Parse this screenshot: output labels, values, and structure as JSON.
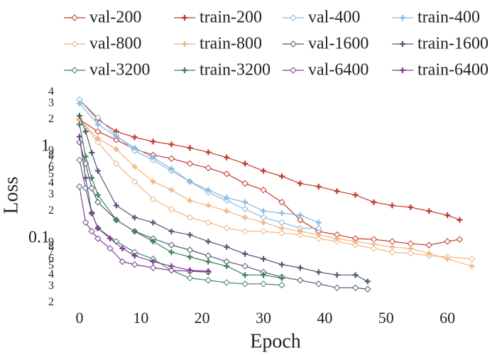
{
  "chart_data": {
    "type": "line",
    "x_label": "Epoch",
    "y_label": "Loss",
    "y_scale": "log",
    "grid": false,
    "xlim": [
      -1.5,
      64.5
    ],
    "xticks": [
      0,
      10,
      20,
      30,
      40,
      50,
      60
    ],
    "ylim": [
      0.018,
      4.5
    ],
    "yticks": [
      {
        "value": 0.02,
        "label": "2"
      },
      {
        "value": 0.03,
        "label": "3"
      },
      {
        "value": 0.04,
        "label": "4"
      },
      {
        "value": 0.05,
        "label": "5"
      },
      {
        "value": 0.06,
        "label": "6"
      },
      {
        "value": 0.07,
        "label": "7"
      },
      {
        "value": 0.08,
        "label": "8"
      },
      {
        "value": 0.09,
        "label": "9"
      },
      0.1,
      {
        "value": 0.2,
        "label": "2"
      },
      {
        "value": 0.3,
        "label": "3"
      },
      {
        "value": 0.4,
        "label": "4"
      },
      {
        "value": 0.5,
        "label": "5"
      },
      {
        "value": 0.6,
        "label": "6"
      },
      {
        "value": 0.7,
        "label": "7"
      },
      {
        "value": 0.8,
        "label": "8"
      },
      {
        "value": 0.9,
        "label": "9"
      },
      1,
      2,
      3,
      4
    ],
    "series": [
      {
        "name": "val-200",
        "color": "#c0392b",
        "marker": "diamond-open",
        "x": [
          0,
          3,
          6,
          9,
          12,
          15,
          18,
          21,
          24,
          27,
          30,
          33,
          36,
          39,
          42,
          45,
          48,
          51,
          54,
          57,
          60,
          62
        ],
        "values": [
          2.0,
          1.48,
          1.2,
          0.95,
          0.82,
          0.75,
          0.66,
          0.59,
          0.51,
          0.4,
          0.34,
          0.25,
          0.16,
          0.12,
          0.11,
          0.1,
          0.098,
          0.093,
          0.088,
          0.085,
          0.093,
          0.098
        ]
      },
      {
        "name": "train-200",
        "color": "#c0392b",
        "marker": "cross",
        "x": [
          0,
          3,
          6,
          9,
          12,
          15,
          18,
          21,
          24,
          27,
          30,
          33,
          36,
          39,
          42,
          45,
          48,
          51,
          54,
          57,
          60,
          62
        ],
        "values": [
          3.3,
          2.0,
          1.48,
          1.28,
          1.15,
          1.07,
          0.98,
          0.88,
          0.77,
          0.66,
          0.55,
          0.48,
          0.4,
          0.37,
          0.33,
          0.3,
          0.25,
          0.23,
          0.22,
          0.2,
          0.18,
          0.16
        ]
      },
      {
        "name": "val-400",
        "color": "#8ab9df",
        "marker": "diamond-open",
        "x": [
          0,
          3,
          6,
          9,
          12,
          15,
          18,
          21,
          24,
          27,
          30,
          33,
          36,
          39
        ],
        "values": [
          3.3,
          2.1,
          1.35,
          0.91,
          0.72,
          0.55,
          0.42,
          0.32,
          0.26,
          0.21,
          0.17,
          0.15,
          0.13,
          0.13
        ]
      },
      {
        "name": "train-400",
        "color": "#8ab9df",
        "marker": "cross",
        "x": [
          0,
          3,
          6,
          9,
          12,
          15,
          18,
          21,
          24,
          27,
          30,
          33,
          36,
          39
        ],
        "values": [
          3.0,
          1.77,
          1.31,
          0.98,
          0.77,
          0.58,
          0.42,
          0.34,
          0.28,
          0.25,
          0.2,
          0.19,
          0.18,
          0.15
        ]
      },
      {
        "name": "val-800",
        "color": "#f2b482",
        "marker": "diamond-open",
        "x": [
          0,
          3,
          6,
          9,
          12,
          15,
          18,
          21,
          24,
          27,
          30,
          33,
          36,
          39,
          42,
          45,
          48,
          51,
          54,
          57,
          60,
          64
        ],
        "values": [
          2.0,
          1.13,
          0.66,
          0.42,
          0.27,
          0.21,
          0.17,
          0.15,
          0.13,
          0.12,
          0.12,
          0.115,
          0.11,
          0.1,
          0.093,
          0.085,
          0.078,
          0.071,
          0.069,
          0.065,
          0.063,
          0.06
        ]
      },
      {
        "name": "train-800",
        "color": "#f2b482",
        "marker": "cross",
        "x": [
          0,
          3,
          6,
          9,
          12,
          15,
          18,
          21,
          24,
          27,
          30,
          33,
          36,
          39,
          42,
          45,
          48,
          51,
          54,
          57,
          60,
          64
        ],
        "values": [
          2.0,
          1.24,
          0.95,
          0.61,
          0.42,
          0.34,
          0.26,
          0.23,
          0.2,
          0.17,
          0.15,
          0.13,
          0.12,
          0.11,
          0.1,
          0.093,
          0.087,
          0.081,
          0.078,
          0.069,
          0.06,
          0.05
        ]
      },
      {
        "name": "val-1600",
        "color": "#4d5873",
        "marker": "diamond-open",
        "x": [
          0,
          1,
          2,
          3,
          6,
          9,
          12,
          15,
          18,
          21,
          24,
          27,
          30,
          33,
          36,
          39,
          42,
          45,
          47
        ],
        "values": [
          1.13,
          0.66,
          0.355,
          0.25,
          0.16,
          0.12,
          0.1,
          0.085,
          0.075,
          0.065,
          0.056,
          0.05,
          0.043,
          0.038,
          0.035,
          0.032,
          0.029,
          0.029,
          0.028
        ]
      },
      {
        "name": "train-1600",
        "color": "#4d5873",
        "marker": "cross",
        "x": [
          0,
          1,
          2,
          3,
          6,
          9,
          12,
          15,
          18,
          21,
          24,
          27,
          30,
          33,
          36,
          39,
          42,
          45,
          47
        ],
        "values": [
          2.2,
          1.48,
          0.87,
          0.55,
          0.23,
          0.17,
          0.15,
          0.12,
          0.11,
          0.093,
          0.081,
          0.068,
          0.06,
          0.052,
          0.048,
          0.043,
          0.04,
          0.04,
          0.034
        ]
      },
      {
        "name": "val-3200",
        "color": "#3d7f5e",
        "marker": "diamond-open",
        "x": [
          0,
          1,
          2,
          3,
          6,
          9,
          12,
          15,
          18,
          21,
          24,
          27,
          30,
          33
        ],
        "values": [
          0.72,
          0.355,
          0.19,
          0.13,
          0.093,
          0.071,
          0.06,
          0.045,
          0.037,
          0.035,
          0.033,
          0.032,
          0.032,
          0.031
        ]
      },
      {
        "name": "train-3200",
        "color": "#3d7f5e",
        "marker": "cross",
        "x": [
          0,
          1,
          2,
          3,
          6,
          9,
          12,
          15,
          18,
          21,
          24,
          27,
          30,
          33
        ],
        "values": [
          1.77,
          0.79,
          0.46,
          0.3,
          0.16,
          0.12,
          0.093,
          0.071,
          0.063,
          0.056,
          0.05,
          0.04,
          0.04,
          0.037
        ]
      },
      {
        "name": "val-6400",
        "color": "#7d3f90",
        "marker": "diamond-open",
        "x": [
          0,
          1,
          2,
          3,
          5,
          7,
          9,
          12,
          15,
          18,
          21
        ],
        "values": [
          0.37,
          0.15,
          0.12,
          0.1,
          0.078,
          0.056,
          0.052,
          0.048,
          0.045,
          0.044,
          0.043
        ]
      },
      {
        "name": "train-6400",
        "color": "#7d3f90",
        "marker": "cross",
        "x": [
          0,
          1,
          2,
          3,
          5,
          7,
          9,
          12,
          15,
          18,
          21
        ],
        "values": [
          1.3,
          0.46,
          0.19,
          0.13,
          0.1,
          0.078,
          0.065,
          0.056,
          0.05,
          0.045,
          0.044
        ]
      }
    ]
  }
}
